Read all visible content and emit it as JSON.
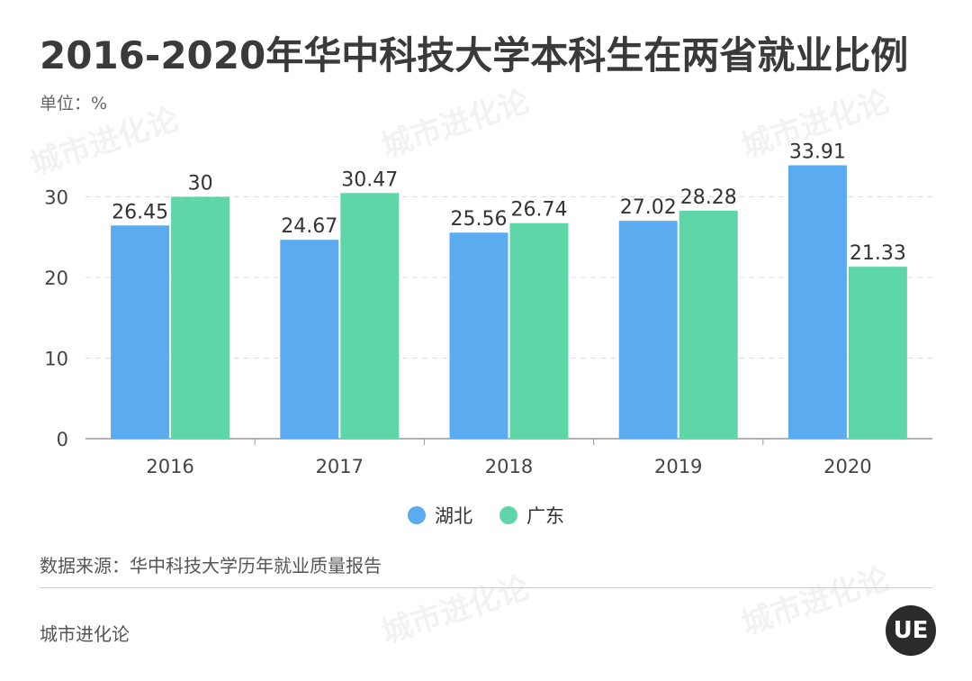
{
  "header": {
    "title": "2016-2020年华中科技大学本科生在两省就业比例",
    "unit": "单位：%"
  },
  "legend": {
    "items": [
      {
        "label": "湖北",
        "color": "#5aabf0"
      },
      {
        "label": "广东",
        "color": "#5fd6a8"
      }
    ]
  },
  "footer": {
    "source": "数据来源：华中科技大学历年就业质量报告",
    "brand": "城市进化论",
    "logo_text": "UE"
  },
  "chart_data": {
    "type": "bar",
    "categories": [
      "2016",
      "2017",
      "2018",
      "2019",
      "2020"
    ],
    "series": [
      {
        "name": "湖北",
        "values": [
          26.45,
          24.67,
          25.56,
          27.02,
          33.91
        ],
        "value_labels": [
          "26.45",
          "24.67",
          "25.56",
          "27.02",
          "33.91"
        ],
        "color": "#5aabf0"
      },
      {
        "name": "广东",
        "values": [
          30,
          30.47,
          26.74,
          28.28,
          21.33
        ],
        "value_labels": [
          "30",
          "30.47",
          "26.74",
          "28.28",
          "21.33"
        ],
        "color": "#5fd6a8"
      }
    ],
    "yticks": [
      "0",
      "10",
      "20",
      "30"
    ],
    "ylim": [
      0,
      35
    ],
    "grid": true,
    "legend_position": "bottom-center"
  }
}
